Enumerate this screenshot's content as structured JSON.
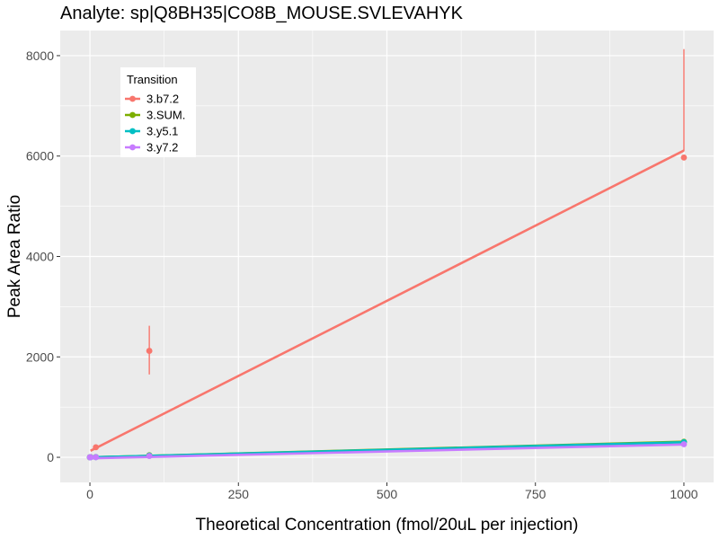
{
  "chart_data": {
    "type": "scatter",
    "title": "Analyte: sp|Q8BH35|CO8B_MOUSE.SVLEVAHYK",
    "xlabel": "Theoretical Concentration (fmol/20uL per injection)",
    "ylabel": "Peak Area Ratio",
    "xlim": [
      -50,
      1050
    ],
    "ylim": [
      -500,
      8500
    ],
    "x_ticks": [
      0,
      250,
      500,
      750,
      1000
    ],
    "y_ticks": [
      0,
      2000,
      4000,
      6000,
      8000
    ],
    "grid": true,
    "legend": {
      "title": "Transition",
      "position": "top-left"
    },
    "series": [
      {
        "name": "3.b7.2",
        "color": "#F8766D",
        "points": [
          {
            "x": 0,
            "y": 0
          },
          {
            "x": 1,
            "y": 5
          },
          {
            "x": 10,
            "y": 200
          },
          {
            "x": 100,
            "y": 2120,
            "err_low": 1650,
            "err_high": 2620
          },
          {
            "x": 1000,
            "y": 5970,
            "err_low": 6100,
            "err_high": 8130
          }
        ],
        "fit": [
          [
            1,
            130
          ],
          [
            1000,
            6110
          ]
        ]
      },
      {
        "name": "3.SUM.",
        "color": "#7CAE00",
        "points": [
          {
            "x": 0,
            "y": 0
          },
          {
            "x": 1,
            "y": 3
          },
          {
            "x": 10,
            "y": 5
          },
          {
            "x": 100,
            "y": 40
          },
          {
            "x": 1000,
            "y": 310
          }
        ],
        "fit": [
          [
            1,
            0
          ],
          [
            1000,
            310
          ]
        ]
      },
      {
        "name": "3.y5.1",
        "color": "#00BFC4",
        "points": [
          {
            "x": 0,
            "y": 0
          },
          {
            "x": 1,
            "y": 2
          },
          {
            "x": 10,
            "y": 4
          },
          {
            "x": 100,
            "y": 35
          },
          {
            "x": 1000,
            "y": 300
          }
        ],
        "fit": [
          [
            1,
            0
          ],
          [
            1000,
            300
          ]
        ]
      },
      {
        "name": "3.y7.2",
        "color": "#C77CFF",
        "points": [
          {
            "x": 0,
            "y": 0
          },
          {
            "x": 1,
            "y": 1
          },
          {
            "x": 10,
            "y": 2
          },
          {
            "x": 100,
            "y": 25
          },
          {
            "x": 1000,
            "y": 260
          }
        ],
        "fit": [
          [
            1,
            -20
          ],
          [
            1000,
            255
          ]
        ]
      }
    ]
  }
}
